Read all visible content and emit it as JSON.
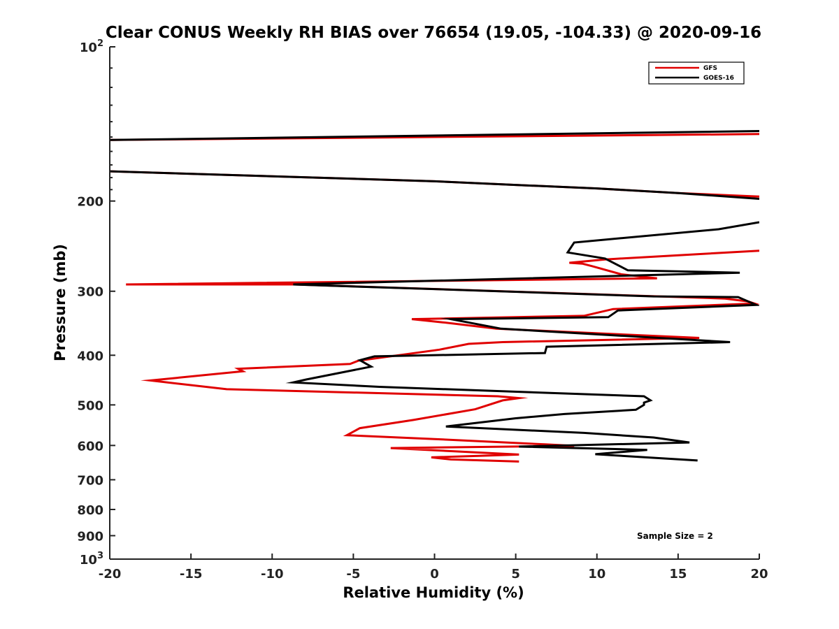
{
  "chart_data": {
    "type": "line",
    "title": "Clear CONUS Weekly RH BIAS over 76654 (19.05, -104.33) @ 2020-09-16",
    "xlabel": "Relative Humidity (%)",
    "ylabel": "Pressure (mb)",
    "xlim": [
      -20,
      20
    ],
    "ylim": [
      100,
      1000
    ],
    "yscale": "log",
    "y_reversed": true,
    "grid": false,
    "legend_position": "top-right",
    "x_ticks": [
      -20,
      -15,
      -10,
      -5,
      0,
      5,
      10,
      15,
      20
    ],
    "x_tick_labels": [
      "-20",
      "-15",
      "-10",
      "-5",
      "0",
      "5",
      "10",
      "15",
      "20"
    ],
    "y_ticks": [
      {
        "value": 100,
        "base": "10",
        "exp": "2"
      },
      {
        "value": 200,
        "label": "200"
      },
      {
        "value": 300,
        "label": "300"
      },
      {
        "value": 400,
        "label": "400"
      },
      {
        "value": 500,
        "label": "500"
      },
      {
        "value": 600,
        "label": "600"
      },
      {
        "value": 700,
        "label": "700"
      },
      {
        "value": 800,
        "label": "800"
      },
      {
        "value": 900,
        "label": "900"
      },
      {
        "value": 1000,
        "base": "10",
        "exp": "3"
      }
    ],
    "annotation": "Sample Size = 2",
    "series": [
      {
        "name": "GFS",
        "color": "#e00000",
        "segments": [
          [
            [
              -20,
              152
            ],
            [
              20,
              148
            ]
          ],
          [
            [
              -20,
              175
            ],
            [
              0,
              183
            ],
            [
              5,
              186
            ],
            [
              10,
              189
            ],
            [
              15,
              193
            ],
            [
              20,
              196
            ]
          ],
          [
            [
              20,
              250
            ],
            [
              10.5,
              260
            ],
            [
              8.3,
              264
            ],
            [
              9.1,
              265
            ],
            [
              9.7,
              268
            ],
            [
              11.5,
              278
            ],
            [
              13.7,
              283
            ],
            [
              -19,
              291
            ],
            [
              -8.6,
              291
            ],
            [
              17.9,
              310
            ],
            [
              19.3,
              314
            ],
            [
              19.7,
              317
            ],
            [
              11,
              325
            ],
            [
              9.2,
              335
            ],
            [
              -1.4,
              340
            ],
            [
              0.5,
              345
            ],
            [
              3.8,
              355
            ],
            [
              16.3,
              370
            ],
            [
              4.2,
              377
            ],
            [
              2.1,
              380
            ],
            [
              0.3,
              390
            ],
            [
              -4.7,
              410
            ],
            [
              -5.2,
              416
            ],
            [
              -12.1,
              425
            ],
            [
              -11.8,
              430
            ],
            [
              -17.5,
              448
            ],
            [
              -12.8,
              466
            ],
            [
              3.9,
              481
            ],
            [
              5.2,
              485
            ],
            [
              4.2,
              490
            ],
            [
              2.5,
              510
            ],
            [
              -1.3,
              535
            ],
            [
              -4.6,
              555
            ],
            [
              -5.4,
              573
            ],
            [
              0,
              583
            ],
            [
              6.8,
              597
            ],
            [
              8.6,
              601
            ],
            [
              -2.7,
              607
            ],
            [
              5.2,
              625
            ],
            [
              -0.2,
              633
            ],
            [
              1,
              639
            ],
            [
              5.2,
              645
            ]
          ]
        ]
      },
      {
        "name": "GOES-16",
        "color": "#000000",
        "segments": [
          [
            [
              -20,
              152
            ],
            [
              20,
              146
            ]
          ],
          [
            [
              -20,
              175
            ],
            [
              0,
              183
            ],
            [
              5,
              186
            ],
            [
              10,
              189
            ],
            [
              15,
              193
            ],
            [
              20,
              198
            ]
          ],
          [
            [
              20,
              220
            ],
            [
              17.5,
              227
            ],
            [
              8.6,
              241
            ],
            [
              8.2,
              252
            ],
            [
              10.5,
              259
            ],
            [
              11.9,
              273
            ],
            [
              18.8,
              276
            ],
            [
              -8.7,
              291
            ],
            [
              13.5,
              307
            ],
            [
              18.7,
              308
            ],
            [
              19.8,
              319
            ],
            [
              11.3,
              327
            ],
            [
              10.7,
              337
            ],
            [
              1,
              340
            ],
            [
              4.1,
              355
            ],
            [
              18.2,
              377
            ],
            [
              6.9,
              385
            ],
            [
              6.8,
              396
            ],
            [
              -3.7,
              402
            ],
            [
              -4.6,
              409
            ],
            [
              -3.9,
              421
            ],
            [
              -7.9,
              446
            ],
            [
              -8.7,
              452
            ],
            [
              -3.4,
              461
            ],
            [
              12.9,
              481
            ],
            [
              13.3,
              490
            ],
            [
              12.9,
              495
            ],
            [
              12.9,
              500
            ],
            [
              12.4,
              511
            ],
            [
              8,
              521
            ],
            [
              5,
              531
            ],
            [
              0.7,
              551
            ],
            [
              9.2,
              567
            ],
            [
              13.5,
              579
            ],
            [
              15.7,
              592
            ],
            [
              5.2,
              603
            ],
            [
              13.1,
              612
            ],
            [
              9.9,
              624
            ],
            [
              16.2,
              642
            ]
          ]
        ]
      }
    ]
  }
}
